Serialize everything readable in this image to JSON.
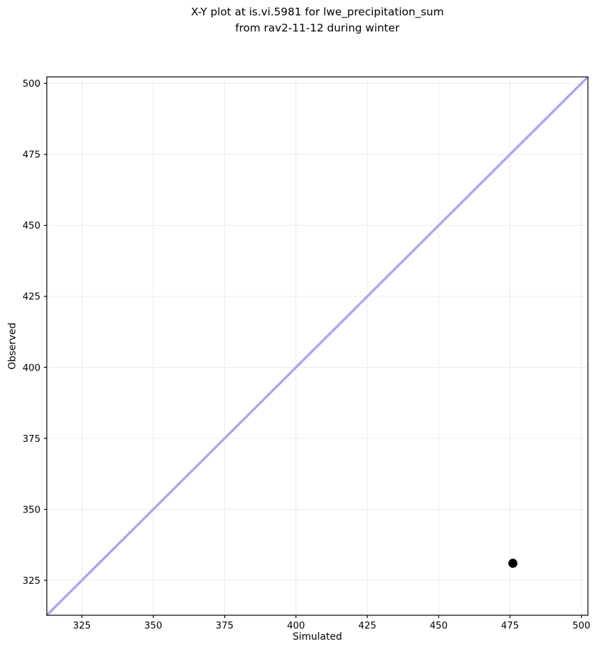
{
  "figure": {
    "title_lines": [
      "X-Y plot at is.vi.5981 for lwe_precipitation_sum",
      "from rav2-11-12 during winter"
    ]
  },
  "chart_data": {
    "type": "scatter",
    "title": "X-Y plot at is.vi.5981 for lwe_precipitation_sum\nfrom rav2-11-12 during winter",
    "xlabel": "Simulated",
    "ylabel": "Observed",
    "xlim": [
      312.7,
      502.3
    ],
    "ylim": [
      312.7,
      502.3
    ],
    "xticks": [
      325,
      350,
      375,
      400,
      425,
      450,
      475,
      500
    ],
    "yticks": [
      325,
      350,
      375,
      400,
      425,
      450,
      475,
      500
    ],
    "grid": true,
    "legend": false,
    "series": [
      {
        "name": "identity-line",
        "type": "line",
        "color": "#a9a9ee",
        "line_width": 3.5,
        "points": [
          [
            312.7,
            312.7
          ],
          [
            502.3,
            502.3
          ]
        ]
      },
      {
        "name": "observations",
        "type": "scatter",
        "color": "#000000",
        "marker_radius": 6.5,
        "points": [
          [
            476,
            331
          ]
        ]
      }
    ],
    "colors": {
      "background": "#ffffff",
      "grid": "#ebebeb",
      "spine": "#000000",
      "text": "#000000"
    }
  }
}
